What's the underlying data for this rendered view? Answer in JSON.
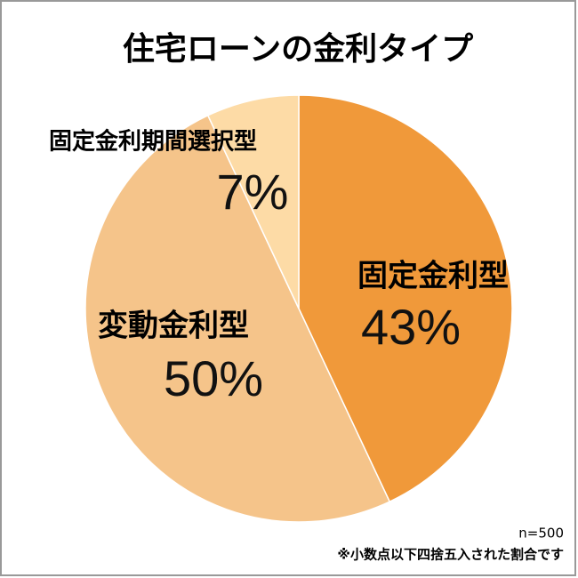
{
  "chart_data": {
    "type": "pie",
    "title": "住宅ローンの金利タイプ",
    "categories": [
      "固定金利型",
      "変動金利型",
      "固定金利期間選択型"
    ],
    "values": [
      43,
      50,
      7
    ],
    "value_labels": [
      "43%",
      "50%",
      "7%"
    ],
    "colors": [
      "#f0993a",
      "#f5c48a",
      "#fddba6"
    ],
    "notes": [
      "n=500",
      "※小数点以下四捨五入された割合です"
    ]
  }
}
